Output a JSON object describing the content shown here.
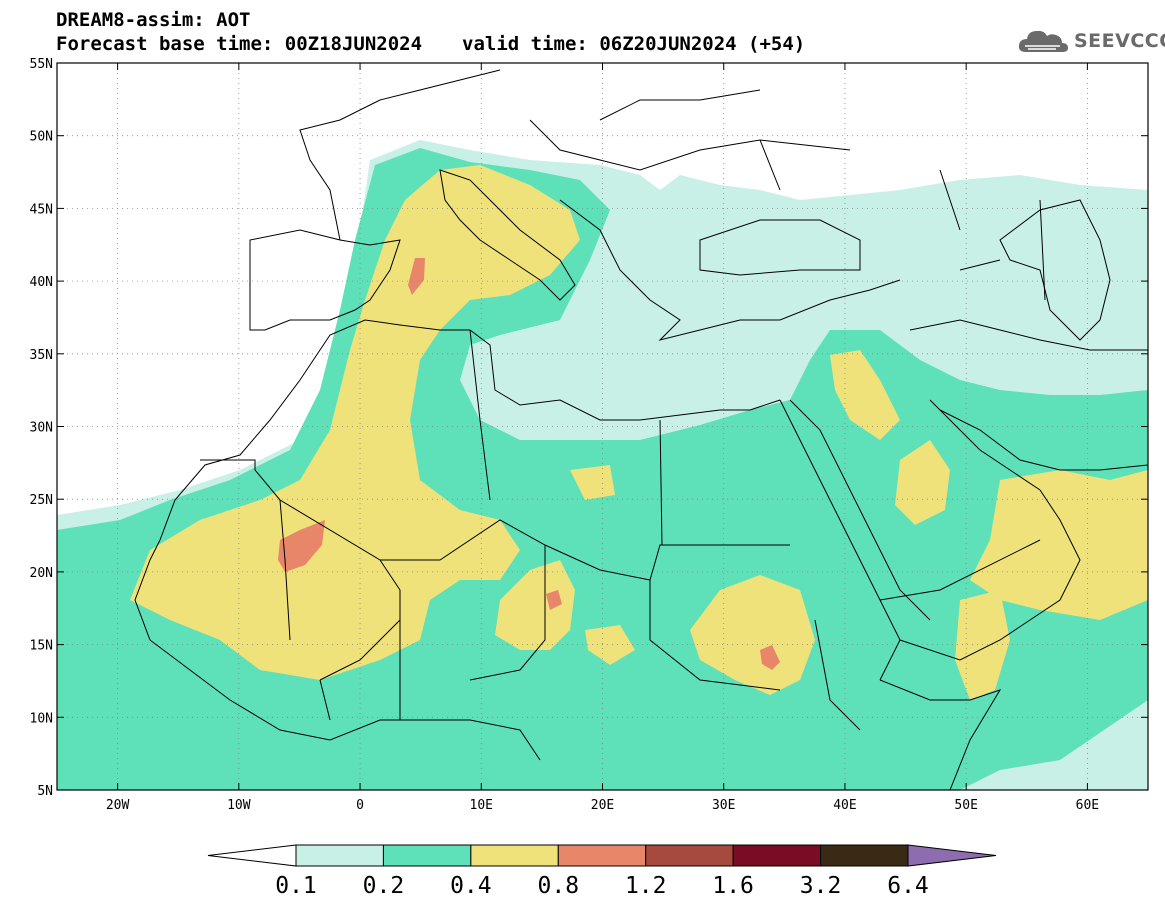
{
  "header": {
    "title": "DREAM8-assim: AOT",
    "base_time": "Forecast base time: 00Z18JUN2024",
    "valid_time": "valid time: 06Z20JUN2024 (+54)"
  },
  "logo": {
    "text": "SEEVCCC",
    "icon": "cloud-icon"
  },
  "map": {
    "lon_range": [
      -25,
      65
    ],
    "lat_range": [
      5,
      55
    ],
    "lat_ticks": [
      "5N",
      "10N",
      "15N",
      "20N",
      "25N",
      "30N",
      "35N",
      "40N",
      "45N",
      "50N",
      "55N"
    ],
    "lon_ticks": [
      "20W",
      "10W",
      "0",
      "10E",
      "20E",
      "30E",
      "40E",
      "50E",
      "60E"
    ],
    "lat_values": [
      5,
      10,
      15,
      20,
      25,
      30,
      35,
      40,
      45,
      50,
      55
    ],
    "lon_values": [
      -20,
      -10,
      0,
      10,
      20,
      30,
      40,
      50,
      60
    ]
  },
  "colorbar": {
    "labels": [
      "0.1",
      "0.2",
      "0.4",
      "0.8",
      "1.2",
      "1.6",
      "3.2",
      "6.4"
    ],
    "colors": [
      "#c8f0e6",
      "#5ee0b8",
      "#f0e27a",
      "#e8866a",
      "#a64a40",
      "#7a0c26",
      "#3a2a14",
      "#8e6cb0"
    ]
  }
}
